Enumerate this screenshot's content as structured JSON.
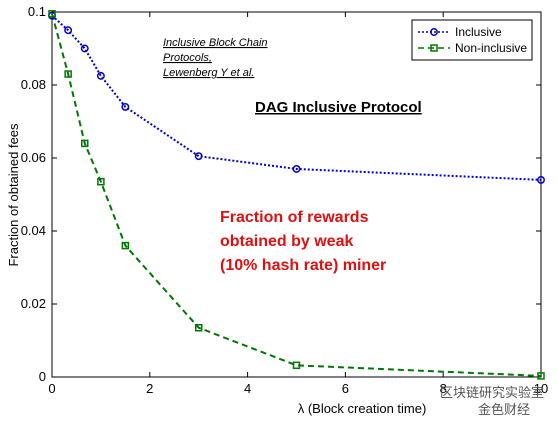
{
  "chart_data": {
    "type": "line",
    "xlabel": "λ  (Block creation time)",
    "ylabel": "Fraction of obtained fees",
    "xlim": [
      0,
      10
    ],
    "ylim": [
      0,
      0.1
    ],
    "x_ticks": [
      "0",
      "2",
      "4",
      "6",
      "8",
      "10"
    ],
    "y_ticks": [
      "0",
      "0.02",
      "0.04",
      "0.06",
      "0.08",
      "0.1"
    ],
    "grid": false,
    "legend_position": "top-right",
    "series": [
      {
        "name": "Inclusive",
        "color": "#0000cc",
        "line_style": "dotted",
        "marker": "circle",
        "x": [
          0,
          0.33,
          0.67,
          1.0,
          1.5,
          3.0,
          5.0,
          10.0
        ],
        "y": [
          0.099,
          0.095,
          0.09,
          0.0825,
          0.074,
          0.0605,
          0.057,
          0.054
        ]
      },
      {
        "name": "Non-inclusive",
        "color": "#007700",
        "line_style": "dashed",
        "marker": "square",
        "x": [
          0,
          0.33,
          0.67,
          1.0,
          1.5,
          3.0,
          5.0,
          10.0
        ],
        "y": [
          0.0995,
          0.083,
          0.064,
          0.0535,
          0.036,
          0.0135,
          0.0032,
          0.0003
        ]
      }
    ],
    "annotations": {
      "reference_lines": [
        "Inclusive Block Chain",
        "Protocols,",
        "Lewenberg Y et al."
      ],
      "title": "DAG Inclusive Protocol",
      "red_lines": [
        "Fraction of rewards",
        "obtained by weak",
        "(10% hash rate) miner"
      ],
      "red_color": "#dd1111"
    }
  },
  "watermark": {
    "line1": "区块链研究实验室",
    "line2": "金色财经"
  }
}
